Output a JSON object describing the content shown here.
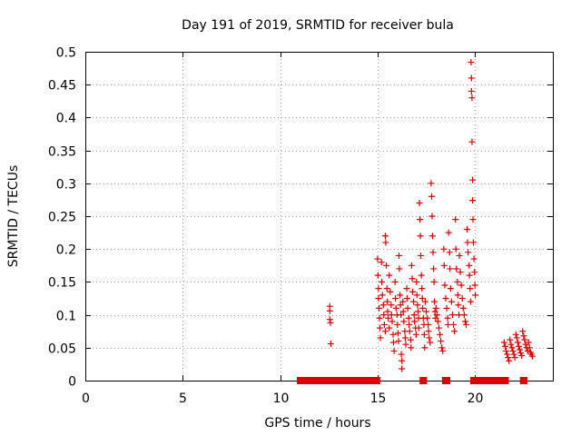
{
  "chart_data": {
    "type": "scatter",
    "title": "Day 191 of 2019, SRMTID for receiver bula",
    "xlabel": "GPS time / hours",
    "ylabel": "SRMTID / TECUs",
    "xlim": [
      0,
      24
    ],
    "ylim": [
      0,
      0.5
    ],
    "grid": true,
    "marker": "+",
    "color": "#dd0000",
    "x_ticks": [
      0,
      5,
      10,
      15,
      20
    ],
    "x_tick_labels": [
      "0",
      "5",
      "10",
      "15",
      "20"
    ],
    "y_ticks": [
      0,
      0.05,
      0.1,
      0.15,
      0.2,
      0.25,
      0.3,
      0.35,
      0.4,
      0.45,
      0.5
    ],
    "y_tick_labels": [
      "0",
      "0.05",
      "0.1",
      "0.15",
      "0.2",
      "0.25",
      "0.3",
      "0.35",
      "0.4",
      "0.45",
      "0.5"
    ],
    "zero_segments": [
      [
        11.0,
        15.0
      ],
      [
        17.3,
        17.4
      ],
      [
        18.45,
        18.6
      ],
      [
        19.9,
        21.6
      ],
      [
        22.45,
        22.55
      ]
    ],
    "points": [
      [
        12.55,
        0.113
      ],
      [
        12.55,
        0.106
      ],
      [
        12.55,
        0.093
      ],
      [
        12.58,
        0.088
      ],
      [
        12.6,
        0.056
      ],
      [
        15.0,
        0.185
      ],
      [
        15.02,
        0.16
      ],
      [
        15.05,
        0.14
      ],
      [
        15.05,
        0.125
      ],
      [
        15.08,
        0.11
      ],
      [
        15.1,
        0.095
      ],
      [
        15.12,
        0.08
      ],
      [
        15.15,
        0.065
      ],
      [
        15.2,
        0.18
      ],
      [
        15.22,
        0.15
      ],
      [
        15.25,
        0.13
      ],
      [
        15.3,
        0.115
      ],
      [
        15.32,
        0.1
      ],
      [
        15.35,
        0.085
      ],
      [
        15.4,
        0.075
      ],
      [
        15.4,
        0.22
      ],
      [
        15.42,
        0.21
      ],
      [
        15.45,
        0.175
      ],
      [
        15.48,
        0.14
      ],
      [
        15.5,
        0.12
      ],
      [
        15.52,
        0.105
      ],
      [
        15.55,
        0.095
      ],
      [
        15.6,
        0.08
      ],
      [
        15.6,
        0.16
      ],
      [
        15.65,
        0.135
      ],
      [
        15.7,
        0.115
      ],
      [
        15.72,
        0.1
      ],
      [
        15.75,
        0.09
      ],
      [
        15.8,
        0.07
      ],
      [
        15.82,
        0.058
      ],
      [
        15.85,
        0.045
      ],
      [
        15.9,
        0.15
      ],
      [
        15.92,
        0.125
      ],
      [
        15.95,
        0.11
      ],
      [
        16.0,
        0.1
      ],
      [
        16.02,
        0.085
      ],
      [
        16.05,
        0.072
      ],
      [
        16.08,
        0.06
      ],
      [
        16.1,
        0.19
      ],
      [
        16.12,
        0.17
      ],
      [
        16.15,
        0.13
      ],
      [
        16.18,
        0.115
      ],
      [
        16.2,
        0.1
      ],
      [
        16.22,
        0.04
      ],
      [
        16.25,
        0.03
      ],
      [
        16.25,
        0.018
      ],
      [
        16.3,
        0.12
      ],
      [
        16.32,
        0.105
      ],
      [
        16.35,
        0.09
      ],
      [
        16.4,
        0.075
      ],
      [
        16.42,
        0.065
      ],
      [
        16.45,
        0.055
      ],
      [
        16.5,
        0.14
      ],
      [
        16.52,
        0.125
      ],
      [
        16.55,
        0.11
      ],
      [
        16.6,
        0.095
      ],
      [
        16.62,
        0.085
      ],
      [
        16.65,
        0.075
      ],
      [
        16.7,
        0.062
      ],
      [
        16.72,
        0.05
      ],
      [
        16.75,
        0.175
      ],
      [
        16.78,
        0.155
      ],
      [
        16.8,
        0.135
      ],
      [
        16.85,
        0.12
      ],
      [
        16.88,
        0.1
      ],
      [
        16.9,
        0.09
      ],
      [
        16.95,
        0.08
      ],
      [
        16.98,
        0.07
      ],
      [
        17.0,
        0.15
      ],
      [
        17.02,
        0.13
      ],
      [
        17.05,
        0.115
      ],
      [
        17.08,
        0.105
      ],
      [
        17.1,
        0.095
      ],
      [
        17.12,
        0.08
      ],
      [
        17.15,
        0.27
      ],
      [
        17.18,
        0.245
      ],
      [
        17.2,
        0.22
      ],
      [
        17.22,
        0.19
      ],
      [
        17.25,
        0.16
      ],
      [
        17.28,
        0.14
      ],
      [
        17.3,
        0.125
      ],
      [
        17.32,
        0.11
      ],
      [
        17.35,
        0.095
      ],
      [
        17.38,
        0.085
      ],
      [
        17.4,
        0.07
      ],
      [
        17.42,
        0.05
      ],
      [
        17.45,
        0.12
      ],
      [
        17.5,
        0.105
      ],
      [
        17.55,
        0.095
      ],
      [
        17.6,
        0.085
      ],
      [
        17.62,
        0.075
      ],
      [
        17.65,
        0.065
      ],
      [
        17.7,
        0.058
      ],
      [
        17.75,
        0.3
      ],
      [
        17.78,
        0.28
      ],
      [
        17.8,
        0.25
      ],
      [
        17.82,
        0.22
      ],
      [
        17.85,
        0.195
      ],
      [
        17.88,
        0.17
      ],
      [
        17.9,
        0.15
      ],
      [
        17.92,
        0.12
      ],
      [
        17.95,
        0.105
      ],
      [
        17.98,
        0.095
      ],
      [
        18.0,
        0.11
      ],
      [
        18.05,
        0.1
      ],
      [
        18.1,
        0.09
      ],
      [
        18.15,
        0.08
      ],
      [
        18.2,
        0.07
      ],
      [
        18.25,
        0.06
      ],
      [
        18.3,
        0.05
      ],
      [
        18.35,
        0.045
      ],
      [
        18.4,
        0.2
      ],
      [
        18.42,
        0.175
      ],
      [
        18.45,
        0.145
      ],
      [
        18.5,
        0.125
      ],
      [
        18.55,
        0.11
      ],
      [
        18.6,
        0.095
      ],
      [
        18.62,
        0.085
      ],
      [
        18.65,
        0.225
      ],
      [
        18.7,
        0.195
      ],
      [
        18.72,
        0.17
      ],
      [
        18.75,
        0.14
      ],
      [
        18.8,
        0.12
      ],
      [
        18.85,
        0.1
      ],
      [
        18.9,
        0.085
      ],
      [
        18.95,
        0.075
      ],
      [
        19.0,
        0.245
      ],
      [
        19.02,
        0.2
      ],
      [
        19.05,
        0.17
      ],
      [
        19.1,
        0.15
      ],
      [
        19.12,
        0.13
      ],
      [
        19.15,
        0.115
      ],
      [
        19.18,
        0.1
      ],
      [
        19.2,
        0.19
      ],
      [
        19.25,
        0.165
      ],
      [
        19.3,
        0.145
      ],
      [
        19.35,
        0.125
      ],
      [
        19.4,
        0.11
      ],
      [
        19.45,
        0.1
      ],
      [
        19.5,
        0.09
      ],
      [
        19.55,
        0.085
      ],
      [
        19.6,
        0.23
      ],
      [
        19.62,
        0.21
      ],
      [
        19.65,
        0.195
      ],
      [
        19.7,
        0.175
      ],
      [
        19.72,
        0.16
      ],
      [
        19.75,
        0.14
      ],
      [
        19.78,
        0.12
      ],
      [
        19.8,
        0.484
      ],
      [
        19.82,
        0.46
      ],
      [
        19.82,
        0.44
      ],
      [
        19.85,
        0.43
      ],
      [
        19.85,
        0.363
      ],
      [
        19.88,
        0.305
      ],
      [
        19.88,
        0.274
      ],
      [
        19.9,
        0.245
      ],
      [
        19.92,
        0.21
      ],
      [
        19.95,
        0.185
      ],
      [
        19.98,
        0.165
      ],
      [
        20.0,
        0.145
      ],
      [
        20.02,
        0.13
      ],
      [
        21.5,
        0.058
      ],
      [
        21.55,
        0.052
      ],
      [
        21.6,
        0.045
      ],
      [
        21.65,
        0.04
      ],
      [
        21.7,
        0.035
      ],
      [
        21.75,
        0.03
      ],
      [
        21.8,
        0.062
      ],
      [
        21.85,
        0.055
      ],
      [
        21.9,
        0.05
      ],
      [
        21.95,
        0.045
      ],
      [
        22.0,
        0.04
      ],
      [
        22.05,
        0.035
      ],
      [
        22.1,
        0.07
      ],
      [
        22.15,
        0.065
      ],
      [
        22.2,
        0.058
      ],
      [
        22.25,
        0.052
      ],
      [
        22.3,
        0.047
      ],
      [
        22.35,
        0.042
      ],
      [
        22.4,
        0.038
      ],
      [
        22.45,
        0.075
      ],
      [
        22.5,
        0.068
      ],
      [
        22.55,
        0.062
      ],
      [
        22.6,
        0.055
      ],
      [
        22.65,
        0.05
      ],
      [
        22.7,
        0.045
      ],
      [
        22.75,
        0.058
      ],
      [
        22.8,
        0.05
      ],
      [
        22.85,
        0.043
      ],
      [
        22.9,
        0.04
      ],
      [
        22.95,
        0.037
      ]
    ]
  }
}
